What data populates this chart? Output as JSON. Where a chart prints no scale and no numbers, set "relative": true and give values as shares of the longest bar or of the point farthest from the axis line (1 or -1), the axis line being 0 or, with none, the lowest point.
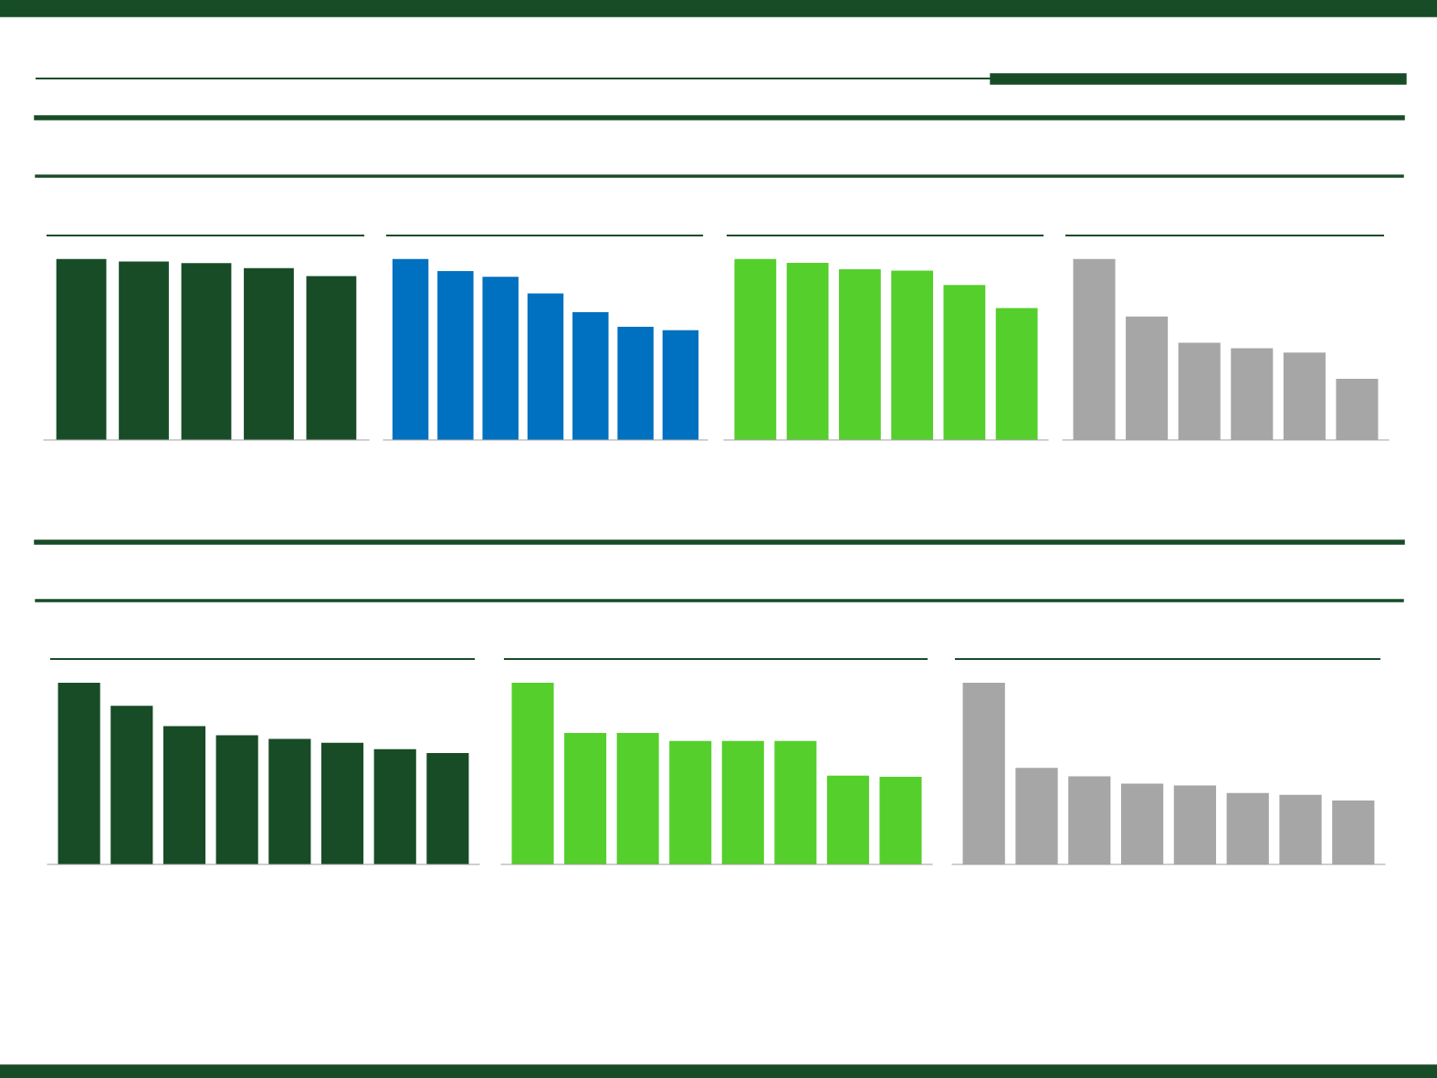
{
  "chart_data": [
    {
      "type": "bar",
      "relative": true,
      "categories": [
        null,
        null,
        null,
        null,
        null
      ],
      "color": "#174c27",
      "values": [
        1,
        0.986,
        0.978,
        0.95,
        0.906
      ]
    },
    {
      "type": "bar",
      "relative": true,
      "categories": [
        null,
        null,
        null,
        null,
        null,
        null,
        null
      ],
      "color": "#0070c0",
      "values": [
        1,
        0.933,
        0.902,
        0.81,
        0.706,
        0.626,
        0.607
      ]
    },
    {
      "type": "bar",
      "relative": true,
      "categories": [
        null,
        null,
        null,
        null,
        null,
        null
      ],
      "color": "#55cf2b",
      "values": [
        1,
        0.979,
        0.943,
        0.936,
        0.857,
        0.729
      ]
    },
    {
      "type": "bar",
      "relative": true,
      "categories": [
        null,
        null,
        null,
        null,
        null,
        null
      ],
      "color": "#a6a6a6",
      "values": [
        1,
        0.682,
        0.537,
        0.507,
        0.483,
        0.338
      ]
    },
    {
      "type": "bar",
      "relative": true,
      "categories": [
        null,
        null,
        null,
        null,
        null,
        null,
        null,
        null
      ],
      "color": "#174c27",
      "values": [
        1,
        0.873,
        0.761,
        0.711,
        0.69,
        0.669,
        0.634,
        0.613
      ]
    },
    {
      "type": "bar",
      "relative": true,
      "categories": [
        null,
        null,
        null,
        null,
        null,
        null,
        null,
        null
      ],
      "color": "#55cf2b",
      "values": [
        1,
        0.723,
        0.723,
        0.679,
        0.679,
        0.679,
        0.489,
        0.482
      ]
    },
    {
      "type": "bar",
      "relative": true,
      "categories": [
        null,
        null,
        null,
        null,
        null,
        null,
        null,
        null
      ],
      "color": "#a6a6a6",
      "values": [
        1,
        0.531,
        0.485,
        0.444,
        0.434,
        0.393,
        0.383,
        0.352
      ]
    }
  ]
}
